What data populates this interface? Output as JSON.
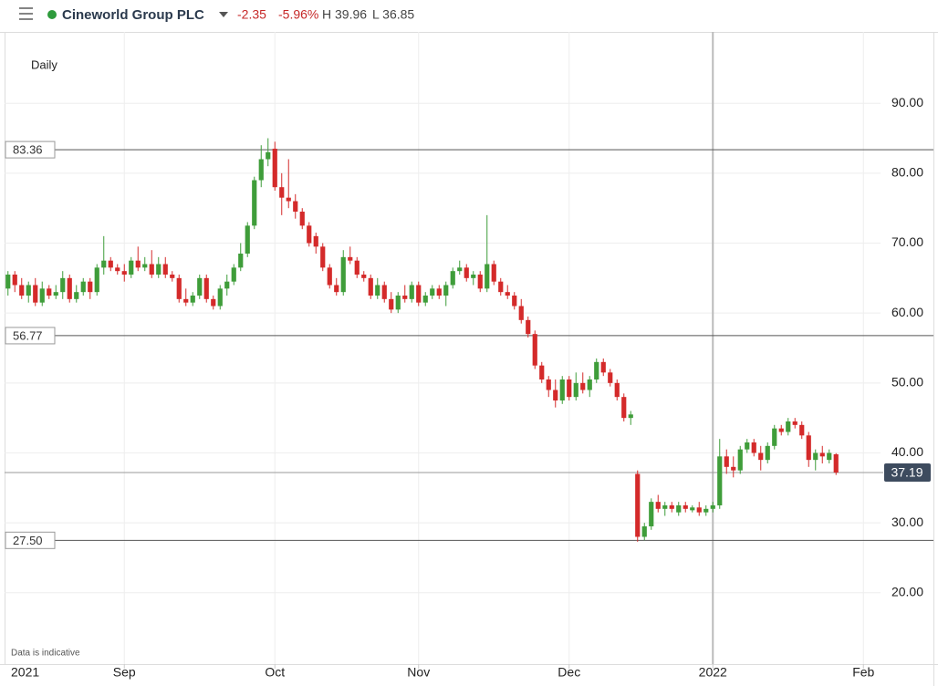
{
  "header": {
    "instrument": "Cineworld Group PLC",
    "change": "-2.35",
    "change_pct": "-5.96%",
    "high": "H 39.96",
    "low": "L 36.85"
  },
  "chart_data": {
    "type": "candlestick",
    "interval": "Daily",
    "note": "Data is indicative",
    "year_label": "2021",
    "up_color": "#3f9d3a",
    "down_color": "#d42a2a",
    "grid": true,
    "xlim": [
      -0.5,
      127.5
    ],
    "xticks": [
      {
        "value": 17,
        "label": "Sep"
      },
      {
        "value": 39,
        "label": "Oct"
      },
      {
        "value": 60,
        "label": "Nov"
      },
      {
        "value": 82,
        "label": "Dec"
      },
      {
        "value": 103,
        "label": "2022"
      },
      {
        "value": 125,
        "label": "Feb"
      }
    ],
    "ylim": [
      9.8,
      100.2
    ],
    "yticks": [
      {
        "value": 20,
        "label": "20.00"
      },
      {
        "value": 30,
        "label": "30.00"
      },
      {
        "value": 40,
        "label": "40.00"
      },
      {
        "value": 50,
        "label": "50.00"
      },
      {
        "value": 60,
        "label": "60.00"
      },
      {
        "value": 70,
        "label": "70.00"
      },
      {
        "value": 80,
        "label": "80.00"
      },
      {
        "value": 90,
        "label": "90.00"
      }
    ],
    "levels": [
      {
        "value": 83.36,
        "label": "83.36"
      },
      {
        "value": 56.77,
        "label": "56.77"
      },
      {
        "value": 27.5,
        "label": "27.50"
      }
    ],
    "last_price": {
      "value": 37.19,
      "label": "37.19"
    },
    "open": [
      63.5,
      65.5,
      64,
      62.5,
      64,
      61.5,
      63.5,
      62.5,
      63,
      65,
      62,
      63,
      64.5,
      63,
      66.5,
      67.5,
      66.5,
      66,
      65.5,
      67.5,
      66.5,
      67,
      65.5,
      67,
      65.5,
      65,
      62,
      61.5,
      62.5,
      65,
      62,
      61,
      63.5,
      64.5,
      66.5,
      68.5,
      72.5,
      79,
      82,
      83.5,
      78,
      76.5,
      76,
      74.5,
      72.5,
      71,
      69.5,
      66.5,
      64,
      63,
      68,
      67.5,
      65.5,
      65,
      62.5,
      64,
      62,
      60.5,
      62.5,
      62,
      64,
      61.5,
      62.5,
      63.5,
      62.5,
      64,
      66,
      66.5,
      65,
      65.5,
      63.5,
      67,
      64.5,
      63,
      62.5,
      61,
      59,
      57,
      52.5,
      50.5,
      49,
      47.5,
      50.5,
      48,
      50,
      49,
      50.5,
      53,
      51.5,
      50,
      48,
      45,
      37,
      28,
      29.5,
      33,
      32,
      32.5,
      31.5,
      32.5,
      31.8,
      32.2,
      31.5,
      32,
      32.5,
      39.5,
      38,
      37.5,
      40.5,
      41.5,
      40,
      39,
      41,
      43.5,
      43,
      44.5,
      44,
      42.5,
      39,
      40,
      39,
      39.8
    ],
    "high": [
      66,
      66,
      65,
      64.5,
      65,
      64.5,
      64,
      64,
      66,
      65.5,
      64,
      65,
      65,
      67,
      71,
      68,
      67,
      67,
      68,
      69.5,
      68,
      69,
      68,
      68,
      66,
      65.5,
      63.5,
      63,
      65.5,
      65.5,
      62.5,
      64,
      65.5,
      67,
      70,
      73,
      79.5,
      84,
      85,
      84.5,
      80,
      82,
      77,
      75,
      73,
      71.5,
      70,
      67,
      65,
      69,
      69.5,
      68,
      66,
      65.5,
      65,
      64.5,
      63,
      63,
      64,
      64.5,
      64.5,
      63,
      64,
      64,
      64.5,
      66.5,
      67.5,
      67,
      66,
      66,
      74,
      67.5,
      65,
      64,
      63,
      62,
      59.5,
      57.5,
      53,
      51,
      50.5,
      51,
      51,
      51.5,
      51.5,
      51,
      53.5,
      53.5,
      52,
      50.5,
      48.5,
      46,
      37.5,
      30,
      33.5,
      34,
      33,
      33,
      33,
      33,
      32.5,
      33,
      32.5,
      33,
      42,
      40.5,
      39.5,
      41,
      42,
      42,
      41,
      41.5,
      44,
      44,
      45,
      45,
      44.5,
      43,
      40.5,
      41,
      40.5,
      39.96
    ],
    "low": [
      62.5,
      63,
      62,
      61.5,
      61,
      61,
      62,
      62,
      62,
      61.5,
      61.5,
      62.5,
      62,
      62.5,
      65.5,
      66,
      65.5,
      64.5,
      65,
      66,
      66,
      65,
      65,
      65,
      64.5,
      61.5,
      61,
      61,
      62,
      61.5,
      60.5,
      60.5,
      62.5,
      64,
      66,
      68,
      72,
      78,
      81,
      77.5,
      74,
      75,
      73.5,
      72,
      69.5,
      68.5,
      66,
      63.5,
      62.5,
      62.5,
      67,
      65,
      64.5,
      62,
      62,
      61.5,
      60,
      60,
      61.5,
      61.5,
      61,
      61,
      62,
      62,
      61,
      63.5,
      65.5,
      64.5,
      64,
      63,
      63,
      64,
      62.5,
      62,
      60.5,
      58.5,
      56.5,
      52,
      50,
      48,
      46.5,
      47,
      47.5,
      47.5,
      48.5,
      48,
      50,
      51,
      49.5,
      47.5,
      44.5,
      44,
      27.3,
      27.5,
      29,
      31.5,
      31,
      31.5,
      31,
      31.5,
      31.5,
      31,
      31,
      31.5,
      32,
      37,
      36.5,
      37,
      40,
      39.5,
      37.5,
      38.5,
      40.5,
      42.5,
      42.5,
      43.5,
      42,
      38,
      37.5,
      38.5,
      38.5,
      36.85
    ],
    "close": [
      65.5,
      64,
      62.5,
      64,
      61.5,
      63.5,
      62.5,
      63,
      65,
      62,
      63,
      64.5,
      63,
      66.5,
      67.5,
      66.5,
      66,
      65.5,
      67.5,
      66.5,
      67,
      65.5,
      67,
      65.5,
      65,
      62,
      61.5,
      62.5,
      65,
      62,
      61,
      63.5,
      64.5,
      66.5,
      68.5,
      72.5,
      79,
      82,
      83,
      78,
      76.5,
      76,
      74.5,
      72.5,
      70,
      69.5,
      66.5,
      64,
      63,
      68,
      67.5,
      65.5,
      65,
      62.5,
      64,
      62,
      60.5,
      62.5,
      62,
      64,
      61.5,
      62.5,
      63.5,
      62.5,
      64,
      66,
      66.5,
      65,
      65.5,
      63.5,
      67,
      64.5,
      63,
      62.5,
      61,
      59,
      57,
      52.5,
      50.5,
      49,
      47.5,
      50.5,
      48,
      50,
      49,
      50.5,
      53,
      51.5,
      50,
      48,
      45,
      45.5,
      28,
      29.5,
      33,
      32,
      32.5,
      32,
      32.5,
      32,
      32.2,
      31.5,
      32,
      32.5,
      39.5,
      38,
      37.5,
      40.5,
      41.5,
      40,
      39,
      41,
      43.5,
      43,
      44.5,
      44,
      42.5,
      39,
      40,
      39.5,
      40,
      37.19
    ]
  }
}
